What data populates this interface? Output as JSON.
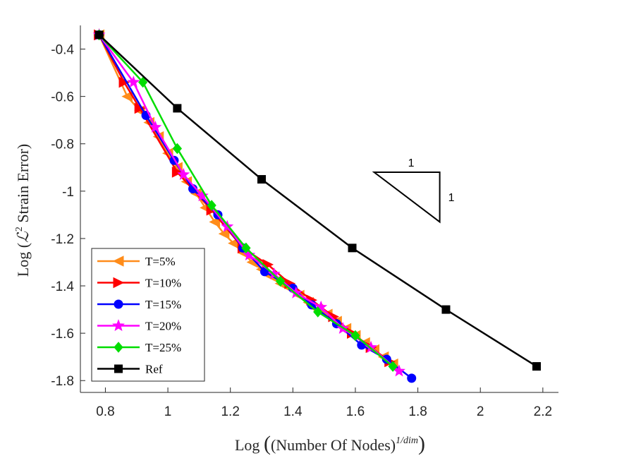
{
  "chart_data": {
    "type": "line",
    "xlabel": "Log",
    "xlabel_inner": "(Number Of Nodes)",
    "xlabel_sup": "1/dim",
    "ylabel": "Log",
    "ylabel_inner_script": "ℒ",
    "ylabel_inner_sup": "2",
    "ylabel_inner_text": " Strain Error",
    "xlim": [
      0.72,
      2.25
    ],
    "ylim": [
      -1.85,
      -0.3
    ],
    "xticks": [
      0.8,
      1.0,
      1.2,
      1.4,
      1.6,
      1.8,
      2.0,
      2.2
    ],
    "xtick_labels": [
      "0.8",
      "1",
      "1.2",
      "1.4",
      "1.6",
      "1.8",
      "2",
      "2.2"
    ],
    "yticks": [
      -0.4,
      -0.6,
      -0.8,
      -1.0,
      -1.2,
      -1.4,
      -1.6,
      -1.8
    ],
    "ytick_labels": [
      "-0.4",
      "-0.6",
      "-0.8",
      "-1",
      "-1.2",
      "-1.4",
      "-1.6",
      "-1.8"
    ],
    "legend_position": "bottom-left",
    "slope_triangle": {
      "run_label": "1",
      "rise_label": "1",
      "x": [
        1.66,
        1.87
      ],
      "y": [
        -0.92,
        -1.13
      ]
    },
    "series": [
      {
        "name": "T=5%",
        "color": "#ff8c1a",
        "marker": "triangle-left",
        "x": [
          0.78,
          0.87,
          0.91,
          0.94,
          0.97,
          1.0,
          1.03,
          1.06,
          1.09,
          1.12,
          1.15,
          1.18,
          1.21,
          1.24,
          1.27,
          1.3,
          1.33,
          1.36,
          1.39,
          1.42,
          1.45,
          1.48,
          1.51,
          1.54,
          1.57,
          1.6,
          1.63,
          1.66,
          1.69,
          1.72
        ],
        "y": [
          -0.34,
          -0.6,
          -0.66,
          -0.71,
          -0.77,
          -0.84,
          -0.9,
          -0.96,
          -1.01,
          -1.07,
          -1.13,
          -1.18,
          -1.22,
          -1.26,
          -1.3,
          -1.33,
          -1.36,
          -1.39,
          -1.41,
          -1.44,
          -1.47,
          -1.5,
          -1.52,
          -1.55,
          -1.58,
          -1.61,
          -1.64,
          -1.67,
          -1.7,
          -1.73
        ]
      },
      {
        "name": "T=10%",
        "color": "#ff0000",
        "marker": "triangle-right",
        "x": [
          0.78,
          0.86,
          0.91,
          1.03,
          1.14,
          1.24,
          1.32,
          1.39,
          1.46,
          1.53,
          1.59,
          1.65,
          1.71
        ],
        "y": [
          -0.34,
          -0.54,
          -0.65,
          -0.92,
          -1.08,
          -1.24,
          -1.31,
          -1.39,
          -1.46,
          -1.53,
          -1.6,
          -1.66,
          -1.72
        ]
      },
      {
        "name": "T=15%",
        "color": "#0000ff",
        "marker": "circle",
        "x": [
          0.78,
          0.93,
          1.02,
          1.08,
          1.16,
          1.24,
          1.31,
          1.4,
          1.46,
          1.54,
          1.62,
          1.7,
          1.78
        ],
        "y": [
          -0.34,
          -0.68,
          -0.87,
          -0.99,
          -1.1,
          -1.24,
          -1.34,
          -1.41,
          -1.48,
          -1.56,
          -1.65,
          -1.71,
          -1.79
        ]
      },
      {
        "name": "T=20%",
        "color": "#ff00ff",
        "marker": "star",
        "x": [
          0.78,
          0.89,
          0.96,
          1.05,
          1.11,
          1.19,
          1.26,
          1.34,
          1.41,
          1.49,
          1.56,
          1.65,
          1.74
        ],
        "y": [
          -0.34,
          -0.54,
          -0.73,
          -0.93,
          -1.02,
          -1.15,
          -1.27,
          -1.35,
          -1.43,
          -1.49,
          -1.58,
          -1.66,
          -1.76
        ]
      },
      {
        "name": "T=25%",
        "color": "#00dd00",
        "marker": "diamond",
        "x": [
          0.78,
          0.92,
          1.03,
          1.14,
          1.25,
          1.36,
          1.48,
          1.6,
          1.72
        ],
        "y": [
          -0.34,
          -0.54,
          -0.82,
          -1.06,
          -1.24,
          -1.38,
          -1.51,
          -1.61,
          -1.74
        ]
      },
      {
        "name": "Ref",
        "color": "#000000",
        "marker": "square",
        "x": [
          0.78,
          1.03,
          1.3,
          1.59,
          1.89,
          2.18
        ],
        "y": [
          -0.34,
          -0.65,
          -0.95,
          -1.24,
          -1.5,
          -1.74
        ]
      }
    ]
  }
}
